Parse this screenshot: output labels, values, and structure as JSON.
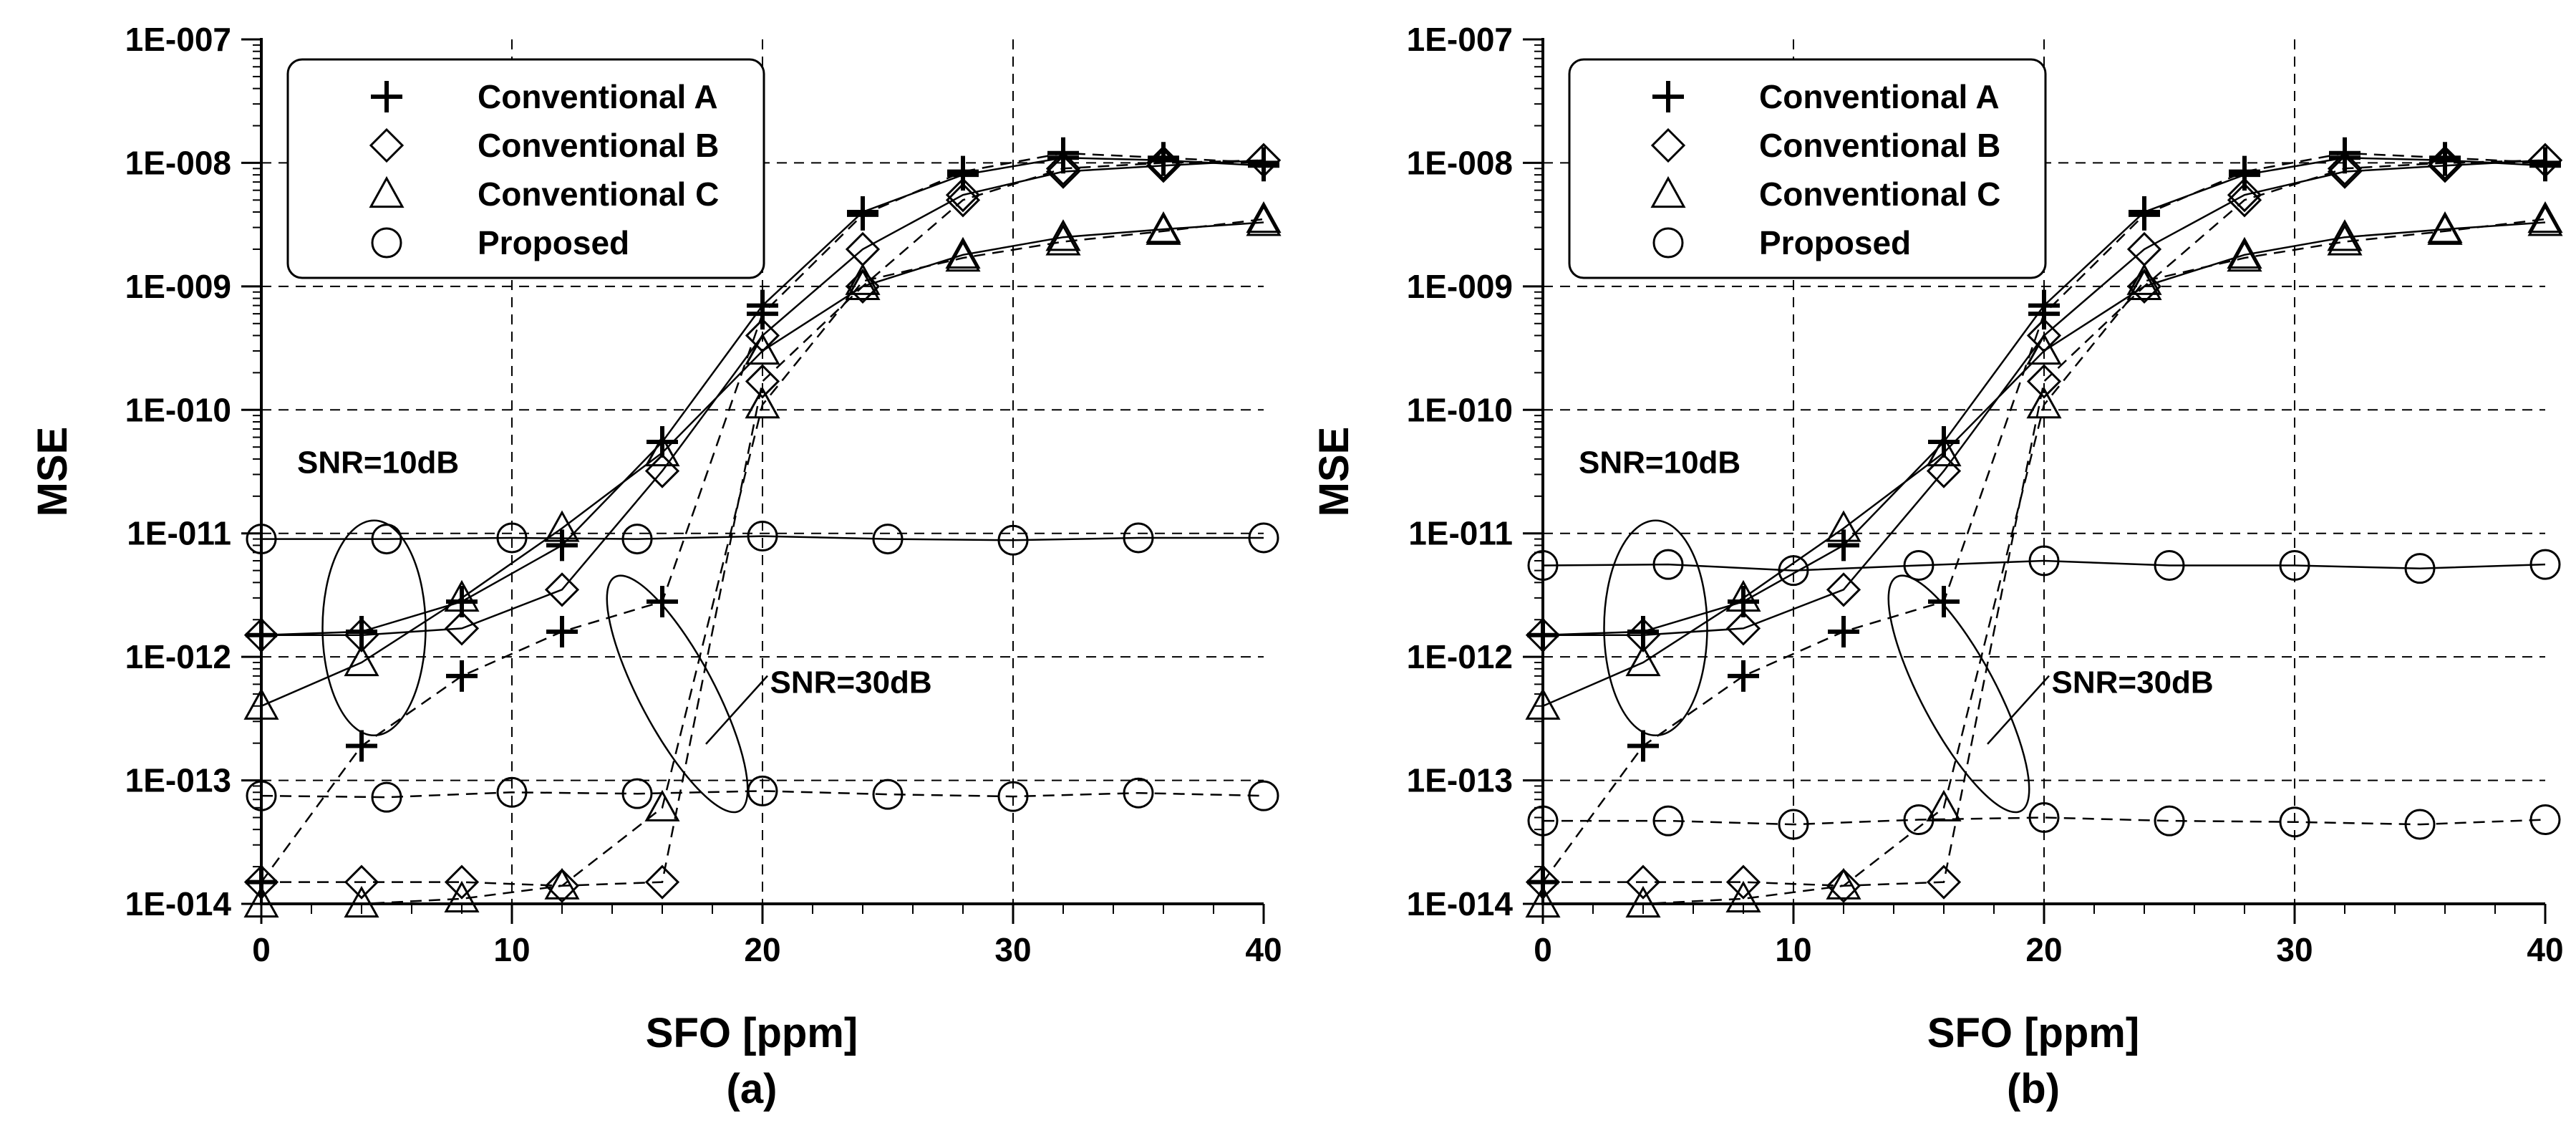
{
  "chart_data": [
    {
      "type": "line",
      "panel_label": "(a)",
      "xlabel": "SFO [ppm]",
      "ylabel": "MSE",
      "xlim": [
        0,
        40
      ],
      "ylim_log10": [
        -14,
        -7
      ],
      "x_ticks": [
        "0",
        "10",
        "20",
        "30",
        "40"
      ],
      "y_ticks": [
        "1E-014",
        "1E-013",
        "1E-012",
        "1E-011",
        "1E-010",
        "1E-009",
        "1E-008",
        "1E-007"
      ],
      "grid": true,
      "legend_position": "top-left",
      "legend": [
        "Conventional A",
        "Conventional B",
        "Conventional C",
        "Proposed"
      ],
      "annotations": [
        "SNR=10dB",
        "SNR=30dB"
      ],
      "series": [
        {
          "name": "Conventional A",
          "snr": "10dB",
          "marker": "plus",
          "line": "solid",
          "x": [
            0,
            4,
            8,
            12,
            16,
            20,
            24,
            28,
            32,
            36,
            40
          ],
          "y": [
            1.5e-12,
            1.6e-12,
            2.8e-12,
            8e-12,
            5.5e-11,
            7e-10,
            4e-09,
            8e-09,
            1.1e-08,
            1.05e-08,
            9.5e-09
          ]
        },
        {
          "name": "Conventional B",
          "snr": "10dB",
          "marker": "diamond",
          "line": "solid",
          "x": [
            0,
            4,
            8,
            12,
            16,
            20,
            24,
            28,
            32,
            36,
            40
          ],
          "y": [
            1.5e-12,
            1.5e-12,
            1.7e-12,
            3.5e-12,
            3.2e-11,
            4e-10,
            2e-09,
            5.5e-09,
            8.5e-09,
            9.5e-09,
            1.05e-08
          ]
        },
        {
          "name": "Conventional C",
          "snr": "10dB",
          "marker": "triangle",
          "line": "solid",
          "x": [
            0,
            4,
            8,
            12,
            16,
            20,
            24,
            28,
            32,
            36,
            40
          ],
          "y": [
            4e-13,
            9e-13,
            3e-12,
            1.1e-11,
            4.5e-11,
            3e-10,
            1e-09,
            1.8e-09,
            2.5e-09,
            2.9e-09,
            3.3e-09
          ]
        },
        {
          "name": "Proposed",
          "snr": "10dB",
          "marker": "circle",
          "line": "solid",
          "x": [
            0,
            5,
            10,
            15,
            20,
            25,
            30,
            35,
            40
          ],
          "y": [
            9e-12,
            9e-12,
            9.2e-12,
            9e-12,
            9.5e-12,
            9e-12,
            8.8e-12,
            9.2e-12,
            9.2e-12
          ]
        },
        {
          "name": "Conventional A",
          "snr": "30dB",
          "marker": "plus",
          "line": "dashed",
          "x": [
            0,
            4,
            8,
            12,
            16,
            20,
            24,
            28,
            32,
            36,
            40
          ],
          "y": [
            1.5e-14,
            1.9e-13,
            7e-13,
            1.6e-12,
            2.8e-12,
            6e-10,
            3.8e-09,
            8.5e-09,
            1.2e-08,
            1.1e-08,
            1e-08
          ]
        },
        {
          "name": "Conventional B",
          "snr": "30dB",
          "marker": "diamond",
          "line": "dashed",
          "x": [
            0,
            4,
            8,
            12,
            16,
            20,
            24,
            28,
            32,
            36,
            40
          ],
          "y": [
            1.5e-14,
            1.5e-14,
            1.5e-14,
            1.4e-14,
            1.5e-14,
            1.7e-10,
            1e-09,
            5e-09,
            9e-09,
            1e-08,
            1.05e-08
          ]
        },
        {
          "name": "Conventional C",
          "snr": "30dB",
          "marker": "triangle",
          "line": "dashed",
          "x": [
            0,
            4,
            8,
            12,
            16,
            20,
            24,
            28,
            32,
            36,
            40
          ],
          "y": [
            1e-14,
            1e-14,
            1.1e-14,
            1.4e-14,
            6e-14,
            1.1e-10,
            1.1e-09,
            1.7e-09,
            2.3e-09,
            2.8e-09,
            3.5e-09
          ]
        },
        {
          "name": "Proposed",
          "snr": "30dB",
          "marker": "circle",
          "line": "dashed",
          "x": [
            0,
            5,
            10,
            15,
            20,
            25,
            30,
            35,
            40
          ],
          "y": [
            7.5e-14,
            7.3e-14,
            8e-14,
            7.8e-14,
            8.2e-14,
            7.7e-14,
            7.4e-14,
            7.9e-14,
            7.5e-14
          ]
        }
      ]
    },
    {
      "type": "line",
      "panel_label": "(b)",
      "xlabel": "SFO [ppm]",
      "ylabel": "MSE",
      "xlim": [
        0,
        40
      ],
      "ylim_log10": [
        -14,
        -7
      ],
      "x_ticks": [
        "0",
        "10",
        "20",
        "30",
        "40"
      ],
      "y_ticks": [
        "1E-014",
        "1E-013",
        "1E-012",
        "1E-011",
        "1E-010",
        "1E-009",
        "1E-008",
        "1E-007"
      ],
      "grid": true,
      "legend_position": "top-left",
      "legend": [
        "Conventional A",
        "Conventional B",
        "Conventional C",
        "Proposed"
      ],
      "annotations": [
        "SNR=10dB",
        "SNR=30dB"
      ],
      "series": [
        {
          "name": "Conventional A",
          "snr": "10dB",
          "marker": "plus",
          "line": "solid",
          "x": [
            0,
            4,
            8,
            12,
            16,
            20,
            24,
            28,
            32,
            36,
            40
          ],
          "y": [
            1.5e-12,
            1.6e-12,
            2.8e-12,
            8e-12,
            5.5e-11,
            7e-10,
            4e-09,
            8e-09,
            1.1e-08,
            1.05e-08,
            9.5e-09
          ]
        },
        {
          "name": "Conventional B",
          "snr": "10dB",
          "marker": "diamond",
          "line": "solid",
          "x": [
            0,
            4,
            8,
            12,
            16,
            20,
            24,
            28,
            32,
            36,
            40
          ],
          "y": [
            1.5e-12,
            1.5e-12,
            1.7e-12,
            3.5e-12,
            3.2e-11,
            4e-10,
            2e-09,
            5.5e-09,
            8.5e-09,
            9.5e-09,
            1.05e-08
          ]
        },
        {
          "name": "Conventional C",
          "snr": "10dB",
          "marker": "triangle",
          "line": "solid",
          "x": [
            0,
            4,
            8,
            12,
            16,
            20,
            24,
            28,
            32,
            36,
            40
          ],
          "y": [
            4e-13,
            9e-13,
            3e-12,
            1.1e-11,
            4.5e-11,
            3e-10,
            1e-09,
            1.8e-09,
            2.5e-09,
            2.9e-09,
            3.3e-09
          ]
        },
        {
          "name": "Proposed",
          "snr": "10dB",
          "marker": "circle",
          "line": "solid",
          "x": [
            0,
            5,
            10,
            15,
            20,
            25,
            30,
            35,
            40
          ],
          "y": [
            5.5e-12,
            5.6e-12,
            5e-12,
            5.5e-12,
            6e-12,
            5.5e-12,
            5.5e-12,
            5.2e-12,
            5.6e-12
          ]
        },
        {
          "name": "Conventional A",
          "snr": "30dB",
          "marker": "plus",
          "line": "dashed",
          "x": [
            0,
            4,
            8,
            12,
            16,
            20,
            24,
            28,
            32,
            36,
            40
          ],
          "y": [
            1.5e-14,
            1.9e-13,
            7e-13,
            1.6e-12,
            2.8e-12,
            6e-10,
            3.8e-09,
            8.5e-09,
            1.2e-08,
            1.1e-08,
            1e-08
          ]
        },
        {
          "name": "Conventional B",
          "snr": "30dB",
          "marker": "diamond",
          "line": "dashed",
          "x": [
            0,
            4,
            8,
            12,
            16,
            20,
            24,
            28,
            32,
            36,
            40
          ],
          "y": [
            1.5e-14,
            1.5e-14,
            1.5e-14,
            1.4e-14,
            1.5e-14,
            1.7e-10,
            1e-09,
            5e-09,
            9e-09,
            1e-08,
            1.05e-08
          ]
        },
        {
          "name": "Conventional C",
          "snr": "30dB",
          "marker": "triangle",
          "line": "dashed",
          "x": [
            0,
            4,
            8,
            12,
            16,
            20,
            24,
            28,
            32,
            36,
            40
          ],
          "y": [
            1e-14,
            1e-14,
            1.1e-14,
            1.4e-14,
            6e-14,
            1.1e-10,
            1.1e-09,
            1.7e-09,
            2.3e-09,
            2.8e-09,
            3.5e-09
          ]
        },
        {
          "name": "Proposed",
          "snr": "30dB",
          "marker": "circle",
          "line": "dashed",
          "x": [
            0,
            5,
            10,
            15,
            20,
            25,
            30,
            35,
            40
          ],
          "y": [
            4.7e-14,
            4.7e-14,
            4.4e-14,
            4.8e-14,
            5e-14,
            4.7e-14,
            4.6e-14,
            4.4e-14,
            4.8e-14
          ]
        }
      ]
    }
  ]
}
